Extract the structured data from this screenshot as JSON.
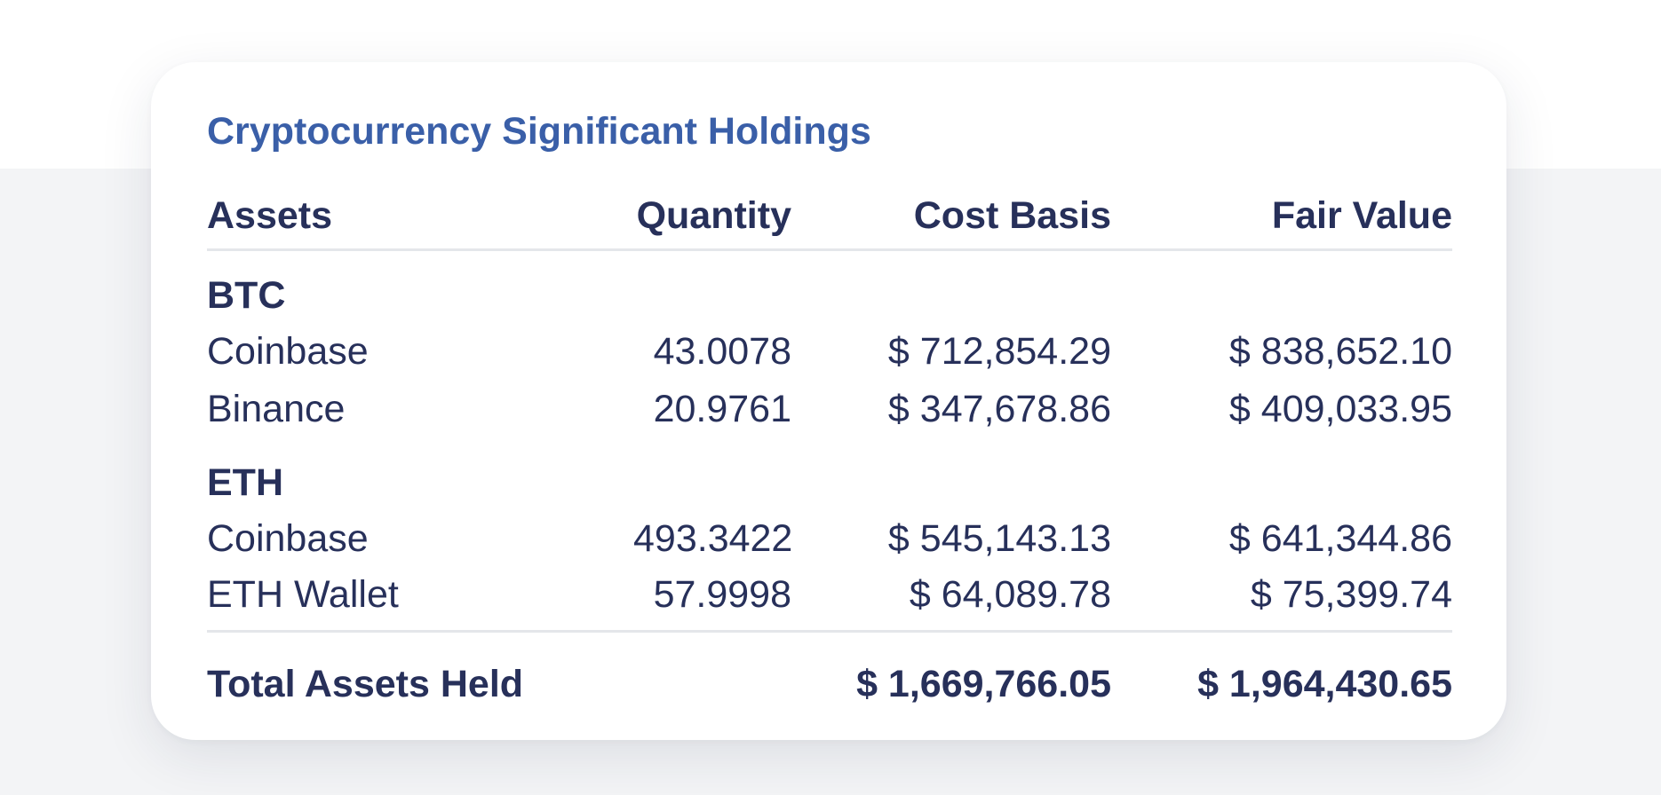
{
  "card": {
    "title": "Cryptocurrency Significant Holdings"
  },
  "table": {
    "columns": [
      "Assets",
      "Quantity",
      "Cost Basis",
      "Fair Value"
    ],
    "groups": [
      {
        "name": "BTC",
        "rows": [
          {
            "asset": "Coinbase",
            "quantity": "43.0078",
            "cost_basis": "$ 712,854.29",
            "fair_value": "$ 838,652.10"
          },
          {
            "asset": "Binance",
            "quantity": "20.9761",
            "cost_basis": "$ 347,678.86",
            "fair_value": "$ 409,033.95"
          }
        ]
      },
      {
        "name": "ETH",
        "rows": [
          {
            "asset": "Coinbase",
            "quantity": "493.3422",
            "cost_basis": "$ 545,143.13",
            "fair_value": "$ 641,344.86"
          },
          {
            "asset": "ETH Wallet",
            "quantity": "57.9998",
            "cost_basis": "$ 64,089.78",
            "fair_value": "$ 75,399.74"
          }
        ]
      }
    ],
    "total": {
      "label": "Total Assets Held",
      "quantity": "",
      "cost_basis": "$ 1,669,766.05",
      "fair_value": "$ 1,964,430.65"
    }
  },
  "colors": {
    "title": "#3a5fa8",
    "text": "#27305a",
    "divider": "#e4e6ea",
    "background": "#f3f4f6",
    "card": "#ffffff"
  }
}
